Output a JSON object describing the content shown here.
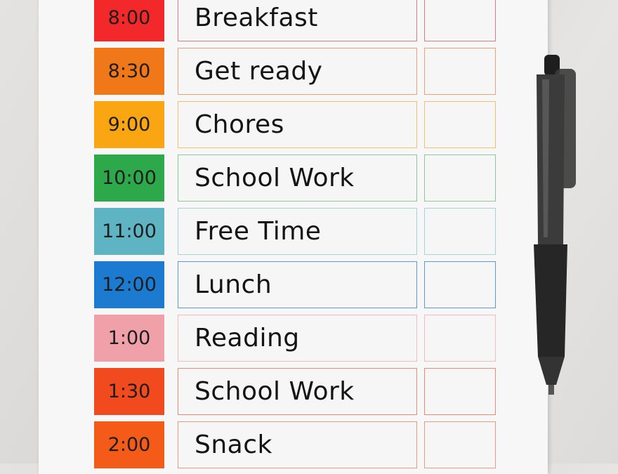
{
  "schedule": [
    {
      "time": "8:00",
      "task": "Breakfast",
      "color": "#f2282a",
      "border": "#e07a86"
    },
    {
      "time": "8:30",
      "task": "Get ready",
      "color": "#f07818",
      "border": "#eba27c"
    },
    {
      "time": "9:00",
      "task": "Chores",
      "color": "#f9a612",
      "border": "#f0c070"
    },
    {
      "time": "10:00",
      "task": "School Work",
      "color": "#2da84a",
      "border": "#8cc79c"
    },
    {
      "time": "11:00",
      "task": "Free Time",
      "color": "#5fb4c4",
      "border": "#a6d2da"
    },
    {
      "time": "12:00",
      "task": "Lunch",
      "color": "#1c7bd0",
      "border": "#5a9ad8"
    },
    {
      "time": "1:00",
      "task": "Reading",
      "color": "#f0a0a8",
      "border": "#eebcc2"
    },
    {
      "time": "1:30",
      "task": "School Work",
      "color": "#f04a1e",
      "border": "#ec8a7a"
    },
    {
      "time": "2:00",
      "task": "Snack",
      "color": "#f45a18",
      "border": "#ee9a80"
    }
  ],
  "pen_color": "#2a2a2a"
}
